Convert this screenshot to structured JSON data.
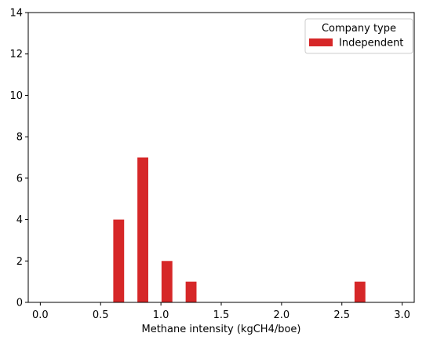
{
  "chart_data": {
    "type": "bar",
    "title": "",
    "xlabel": "Methane intensity (kgCH4/boe)",
    "ylabel": "",
    "xlim": [
      -0.1,
      3.1
    ],
    "ylim": [
      0,
      14
    ],
    "xticks": [
      "0.0",
      "0.5",
      "1.0",
      "1.5",
      "2.0",
      "2.5",
      "3.0"
    ],
    "yticks": [
      "0",
      "2",
      "4",
      "6",
      "8",
      "10",
      "12",
      "14"
    ],
    "bin_width": 0.1,
    "bars": [
      {
        "x_start": 0.6,
        "x_end": 0.7,
        "value": 4
      },
      {
        "x_start": 0.7,
        "x_end": 0.8,
        "value": 0
      },
      {
        "x_start": 0.8,
        "x_end": 0.9,
        "value": 7
      },
      {
        "x_start": 0.9,
        "x_end": 1.0,
        "value": 0
      },
      {
        "x_start": 1.0,
        "x_end": 1.1,
        "value": 2
      },
      {
        "x_start": 1.1,
        "x_end": 1.2,
        "value": 0
      },
      {
        "x_start": 1.2,
        "x_end": 1.3,
        "value": 1
      },
      {
        "x_start": 2.6,
        "x_end": 2.7,
        "value": 1
      }
    ],
    "series": [
      {
        "name": "Independent",
        "color": "#d62728"
      }
    ],
    "legend": {
      "title": "Company type",
      "position": "top-right",
      "entries": [
        "Independent"
      ]
    },
    "grid": false
  }
}
